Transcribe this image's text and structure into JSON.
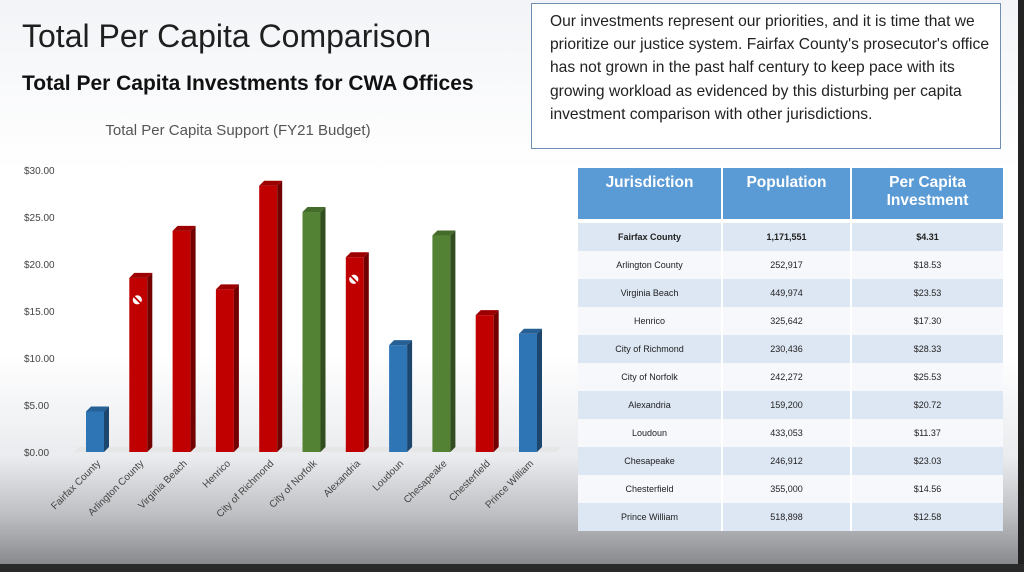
{
  "slide": {
    "title": "Total Per Capita Comparison",
    "subtitle": "Total Per Capita Investments for CWA Offices",
    "quote": "Our investments represent our priorities, and it is time that we prioritize our justice system. Fairfax County's prosecutor's office has not grown in the past half century to keep pace with its growing workload as evidenced by this disturbing per capita investment comparison with other jurisdictions."
  },
  "chart_data": {
    "type": "bar",
    "title": "Total Per Capita Support (FY21 Budget)",
    "xlabel": "",
    "ylabel": "",
    "ylim": [
      0,
      30
    ],
    "yticks": [
      "$0.00",
      "$5.00",
      "$10.00",
      "$15.00",
      "$20.00",
      "$25.00",
      "$30.00"
    ],
    "categories": [
      "Fairfax County",
      "Arlington County",
      "Virginia Beach",
      "Henrico",
      "City of Richmond",
      "City of Norfolk",
      "Alexandria",
      "Loudoun",
      "Chesapeake",
      "Chesterfield",
      "Prince William"
    ],
    "values": [
      4.31,
      18.53,
      23.53,
      17.3,
      28.33,
      25.53,
      20.72,
      11.37,
      23.03,
      14.56,
      12.58
    ],
    "bar_colors": [
      "#2e75b6",
      "#c00000",
      "#c00000",
      "#c00000",
      "#c00000",
      "#548235",
      "#c00000",
      "#2e75b6",
      "#548235",
      "#c00000",
      "#2e75b6"
    ],
    "no_symbol_markers": [
      "Arlington County",
      "Alexandria"
    ],
    "grid": false,
    "legend": "none"
  },
  "table": {
    "headers": [
      "Jurisdiction",
      "Population",
      "Per Capita Investment"
    ],
    "rows": [
      [
        "Fairfax County",
        "1,171,551",
        "$4.31"
      ],
      [
        "Arlington County",
        "252,917",
        "$18.53"
      ],
      [
        "Virginia Beach",
        "449,974",
        "$23.53"
      ],
      [
        "Henrico",
        "325,642",
        "$17.30"
      ],
      [
        "City of Richmond",
        "230,436",
        "$28.33"
      ],
      [
        "City of Norfolk",
        "242,272",
        "$25.53"
      ],
      [
        "Alexandria",
        "159,200",
        "$20.72"
      ],
      [
        "Loudoun",
        "433,053",
        "$11.37"
      ],
      [
        "Chesapeake",
        "246,912",
        "$23.03"
      ],
      [
        "Chesterfield",
        "355,000",
        "$14.56"
      ],
      [
        "Prince William",
        "518,898",
        "$12.58"
      ]
    ]
  }
}
